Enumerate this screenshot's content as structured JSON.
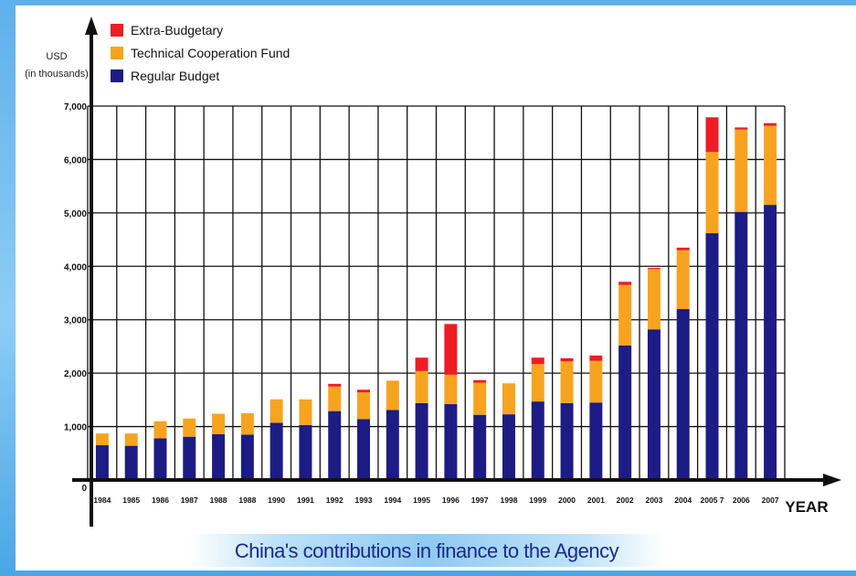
{
  "chart_data": {
    "type": "bar",
    "stacked": true,
    "title": "",
    "caption": "China's contributions in finance to the Agency",
    "ylabel": "USD",
    "ylabel_sub": "(in thousands)",
    "xlabel": "YEAR",
    "ylim": [
      0,
      7000
    ],
    "yticks": [
      "0",
      "1,000",
      "2,000",
      "3,000",
      "4,000",
      "5,000",
      "6,000",
      "7,000"
    ],
    "ytick_values": [
      0,
      1000,
      2000,
      3000,
      4000,
      5000,
      6000,
      7000
    ],
    "grid": true,
    "legend_position": "top-left",
    "categories": [
      "1984",
      "1985",
      "1986",
      "1987",
      "1988",
      "1988",
      "1990",
      "1991",
      "1992",
      "1993",
      "1994",
      "1995",
      "1996",
      "1997",
      "1998",
      "1999",
      "2000",
      "2001",
      "2002",
      "2003",
      "2004",
      "2005 7",
      "2006",
      "2007"
    ],
    "series": [
      {
        "name": "Regular Budget",
        "color": "#1c1c84",
        "values": [
          650,
          640,
          780,
          810,
          860,
          850,
          1070,
          1030,
          1290,
          1140,
          1310,
          1440,
          1420,
          1220,
          1230,
          1470,
          1440,
          1450,
          2520,
          2820,
          3200,
          4620,
          5020,
          5150
        ]
      },
      {
        "name": "Technical Cooperation Fund",
        "color": "#f7a320",
        "values": [
          220,
          230,
          320,
          340,
          380,
          400,
          440,
          480,
          460,
          500,
          550,
          600,
          550,
          600,
          580,
          700,
          780,
          780,
          1130,
          1130,
          1100,
          1520,
          1540,
          1480
        ]
      },
      {
        "name": "Extra-Budgetary",
        "color": "#ee1c24",
        "values": [
          0,
          0,
          0,
          0,
          0,
          0,
          0,
          0,
          50,
          50,
          0,
          250,
          950,
          50,
          0,
          120,
          60,
          100,
          60,
          20,
          50,
          650,
          40,
          50
        ]
      }
    ],
    "legend_order": [
      "Extra-Budgetary",
      "Technical Cooperation Fund",
      "Regular Budget"
    ]
  }
}
